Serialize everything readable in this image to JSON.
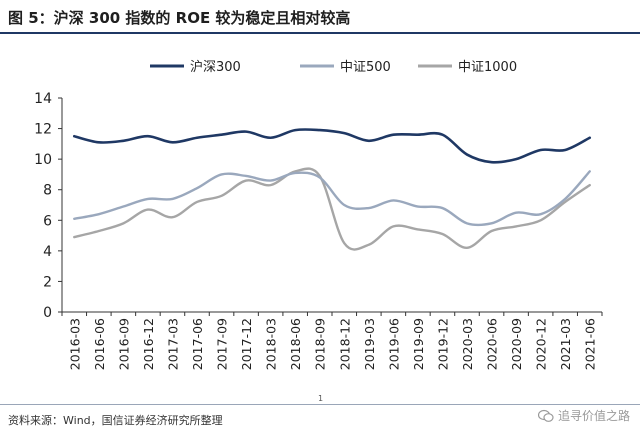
{
  "title": "图 5：沪深 300 指数的 ROE 较为稳定且相对较高",
  "source": "资料来源：Wind，国信证券经济研究所整理",
  "page_number": "1",
  "watermark": "追寻价值之路",
  "watermark_icon": "wechat-icon",
  "chart_data": {
    "type": "line",
    "legend_position": "top-center",
    "grid": false,
    "ylim": [
      0,
      14
    ],
    "yticks": [
      "0",
      "2",
      "4",
      "6",
      "8",
      "10",
      "12",
      "14"
    ],
    "categories": [
      "2016-03",
      "2016-06",
      "2016-09",
      "2016-12",
      "2017-03",
      "2017-06",
      "2017-09",
      "2017-12",
      "2018-03",
      "2018-06",
      "2018-09",
      "2018-12",
      "2019-03",
      "2019-06",
      "2019-09",
      "2019-12",
      "2020-03",
      "2020-06",
      "2020-09",
      "2020-12",
      "2021-03",
      "2021-06"
    ],
    "series": [
      {
        "name": "沪深300",
        "color": "#1f3864",
        "values": [
          11.5,
          11.1,
          11.2,
          11.5,
          11.1,
          11.4,
          11.6,
          11.8,
          11.4,
          11.9,
          11.9,
          11.7,
          11.2,
          11.6,
          11.6,
          11.6,
          10.3,
          9.8,
          10.0,
          10.6,
          10.6,
          11.4
        ]
      },
      {
        "name": "中证500",
        "color": "#9aa8bd",
        "values": [
          6.1,
          6.4,
          6.9,
          7.4,
          7.4,
          8.1,
          9.0,
          8.9,
          8.6,
          9.1,
          8.8,
          7.0,
          6.8,
          7.3,
          6.9,
          6.8,
          5.8,
          5.8,
          6.5,
          6.4,
          7.4,
          9.2
        ]
      },
      {
        "name": "中证1000",
        "color": "#a6a6a6",
        "values": [
          4.9,
          5.3,
          5.8,
          6.7,
          6.2,
          7.2,
          7.6,
          8.6,
          8.3,
          9.2,
          8.9,
          4.5,
          4.4,
          5.6,
          5.4,
          5.1,
          4.2,
          5.3,
          5.6,
          6.0,
          7.2,
          8.3
        ]
      }
    ]
  }
}
